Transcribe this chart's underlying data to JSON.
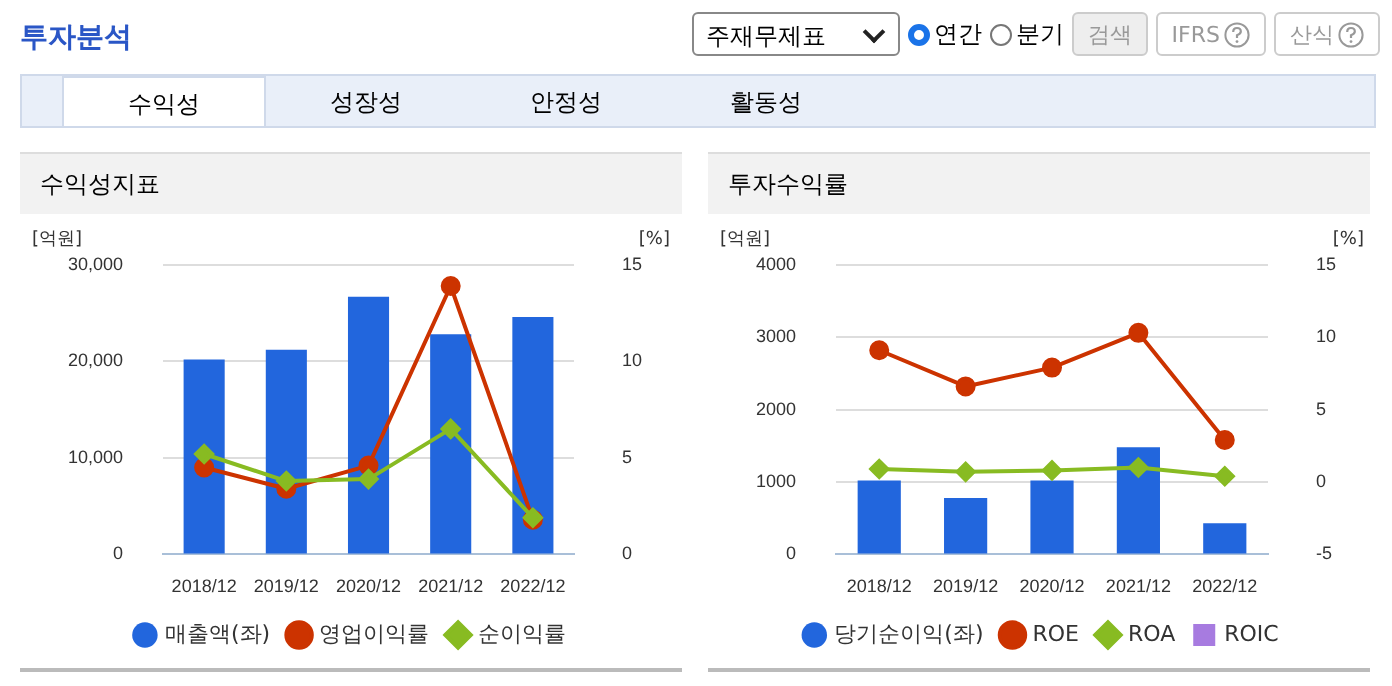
{
  "chart_data": [
    {
      "type": "other",
      "title": "투자분석",
      "annotations": [
        "주재무제표",
        "연간",
        "분기",
        "검색",
        "IFRS",
        "산식",
        "수익성",
        "성장성",
        "안정성",
        "활동성"
      ]
    },
    {
      "type": "bar",
      "title": "수익성지표",
      "ylabel": "[억원]",
      "y2label": "[%]",
      "categories": [
        "2018/12",
        "2019/12",
        "2020/12",
        "2021/12",
        "2022/12"
      ],
      "series": [
        {
          "name": "매출액(좌)",
          "color": "#2266dd",
          "values": [
            20200,
            21200,
            26700,
            22800,
            24600
          ]
        },
        {
          "name": "영업이익률",
          "type": "line",
          "axis": "y2",
          "marker": "circle",
          "color": "#cc3300",
          "values": [
            4.5,
            3.4,
            4.6,
            13.9,
            1.8
          ]
        },
        {
          "name": "순이익률",
          "type": "line",
          "axis": "y2",
          "marker": "diamond",
          "color": "#88bb22",
          "values": [
            5.2,
            3.8,
            3.9,
            6.5,
            1.9
          ]
        }
      ],
      "ylim": [
        0,
        30000
      ],
      "yticks": [
        0,
        {
          "value": 10000,
          "label": "10,000"
        },
        {
          "value": 20000,
          "label": "20,000"
        },
        {
          "value": 30000,
          "label": "30,000"
        }
      ],
      "y2lim": [
        0,
        15
      ],
      "y2ticks": [
        0,
        5,
        10,
        15
      ],
      "grid": "y",
      "legend": "bottom"
    },
    {
      "type": "bar",
      "title": "투자수익률",
      "ylabel": "[억원]",
      "y2label": "[%]",
      "categories": [
        "2018/12",
        "2019/12",
        "2020/12",
        "2021/12",
        "2022/12"
      ],
      "series": [
        {
          "name": "당기순이익(좌)",
          "color": "#2266dd",
          "values": [
            1020,
            780,
            1020,
            1480,
            430
          ]
        },
        {
          "name": "ROE",
          "type": "line",
          "axis": "y2",
          "marker": "circle",
          "color": "#cc3300",
          "values": [
            9.1,
            6.6,
            7.9,
            10.3,
            2.9
          ]
        },
        {
          "name": "ROA",
          "type": "line",
          "axis": "y2",
          "marker": "diamond",
          "color": "#88bb22",
          "values": [
            0.9,
            0.7,
            0.8,
            1.0,
            0.4
          ]
        },
        {
          "name": "ROIC",
          "type": "line",
          "axis": "y2",
          "marker": "square",
          "color": "#a77be0",
          "values": [
            null,
            null,
            null,
            null,
            null
          ]
        }
      ],
      "ylim": [
        0,
        4000
      ],
      "yticks": [
        0,
        1000,
        2000,
        3000,
        4000
      ],
      "y2lim": [
        -5,
        15
      ],
      "y2ticks": [
        -5,
        0,
        5,
        10,
        15
      ],
      "grid": "y",
      "legend": "bottom"
    }
  ]
}
